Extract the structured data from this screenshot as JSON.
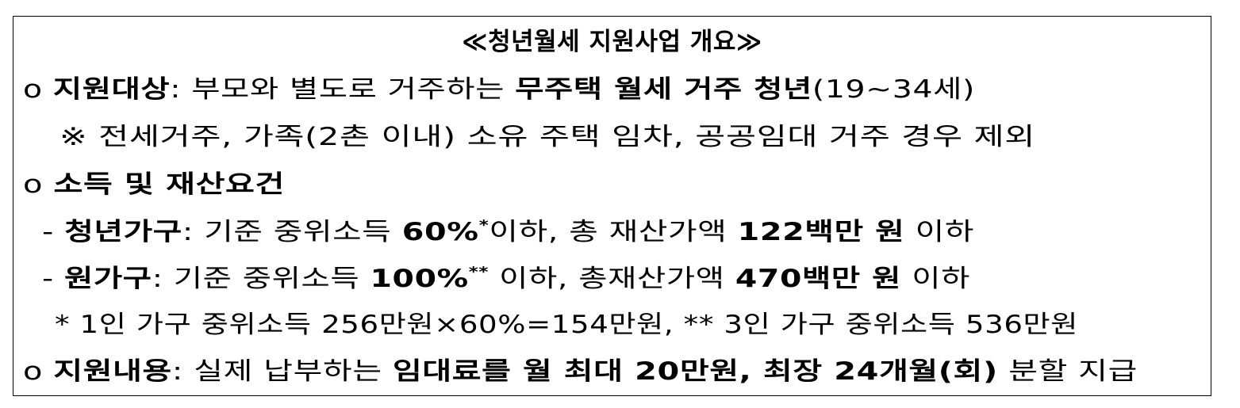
{
  "document": {
    "title": "≪청년월세 지원사업 개요≫",
    "lines": [
      {
        "indent": "o ",
        "segments": [
          {
            "t": "지원대상",
            "b": true
          },
          {
            "t": ": 부모와 별도로 거주하는 ",
            "b": false
          },
          {
            "t": "무주택 월세 거주 청년",
            "b": true
          },
          {
            "t": "(19~34세)",
            "b": false
          }
        ]
      },
      {
        "indent": "",
        "segments": [
          {
            "t": "※ 전세거주, 가족(2촌 이내) 소유 주택 임차, 공공임대 거주 경우 제외",
            "b": false
          }
        ]
      },
      {
        "indent": "o ",
        "segments": [
          {
            "t": "소득 및 재산요건",
            "b": true
          }
        ]
      },
      {
        "indent": "- ",
        "segments": [
          {
            "t": "청년가구",
            "b": true
          },
          {
            "t": ": 기준 중위소득 ",
            "b": false
          },
          {
            "t": "60%",
            "b": true
          },
          {
            "t": "*",
            "b": true,
            "sup": true
          },
          {
            "t": "이하, 총 재산가액 ",
            "b": false
          },
          {
            "t": "122백만 원",
            "b": true
          },
          {
            "t": " 이하",
            "b": false
          }
        ]
      },
      {
        "indent": "- ",
        "segments": [
          {
            "t": "원가구",
            "b": true
          },
          {
            "t": ": 기준 중위소득 ",
            "b": false
          },
          {
            "t": "100%",
            "b": true
          },
          {
            "t": "**",
            "b": true,
            "sup": true
          },
          {
            "t": " 이하, 총재산가액 ",
            "b": false
          },
          {
            "t": "470백만 원",
            "b": true
          },
          {
            "t": " 이하",
            "b": false
          }
        ]
      },
      {
        "indent": "",
        "segments": [
          {
            "t": "* 1인 가구 중위소득 256만원×60%=154만원, ** 3인 가구 중위소득 536만원",
            "b": false
          }
        ]
      },
      {
        "indent": "o ",
        "segments": [
          {
            "t": "지원내용",
            "b": true
          },
          {
            "t": ": 실제 납부하는 ",
            "b": false
          },
          {
            "t": "임대료를 월 최대 20만원, 최장 24개월(회)",
            "b": true
          },
          {
            "t": " 분할 지급",
            "b": false
          }
        ]
      }
    ]
  }
}
